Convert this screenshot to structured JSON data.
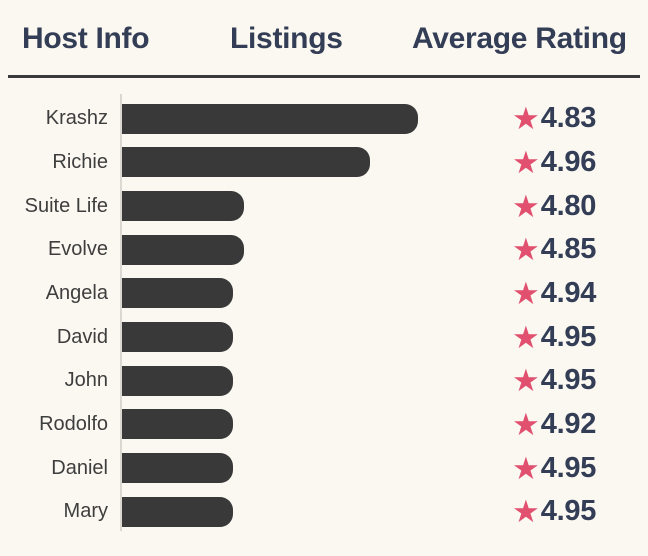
{
  "header": {
    "columns": [
      "Host Info",
      "Listings",
      "Average Rating"
    ]
  },
  "icons": {
    "star": "★"
  },
  "colors": {
    "background": "#faf8f1",
    "bar": "#393939",
    "header_text": "#333d55",
    "label_text": "#3e3e3e",
    "rating_text": "#333d55",
    "star": "#e1506f",
    "header_rule": "#3a3a3a",
    "axis_line": "#dbd8d2"
  },
  "chart_data": {
    "type": "bar",
    "orientation": "horizontal",
    "title": "",
    "xlabel": "",
    "ylabel": "",
    "categories": [
      "Krashz",
      "Richie",
      "Suite Life",
      "Evolve",
      "Angela",
      "David",
      "John",
      "Rodolfo",
      "Daniel",
      "Mary"
    ],
    "series": [
      {
        "name": "Listings",
        "values": [
          80,
          67,
          33,
          33,
          30,
          30,
          30,
          30,
          30,
          30
        ]
      },
      {
        "name": "Average Rating",
        "values": [
          4.83,
          4.96,
          4.8,
          4.85,
          4.94,
          4.95,
          4.95,
          4.92,
          4.95,
          4.95
        ]
      }
    ],
    "xlim": [
      0,
      136
    ],
    "grid": false,
    "legend": "none",
    "rating_value_format": "2dp"
  }
}
